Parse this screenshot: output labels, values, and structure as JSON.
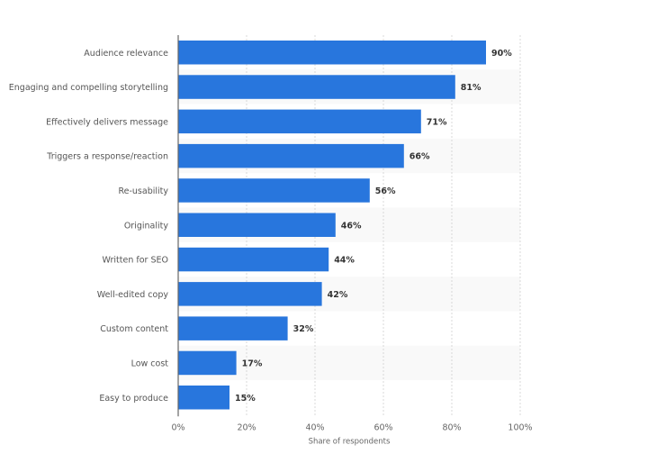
{
  "chart_data": {
    "type": "bar",
    "orientation": "horizontal",
    "title": "",
    "xlabel": "Share of respondents",
    "ylabel": "",
    "xlim": [
      0,
      100
    ],
    "x_ticks": [
      "0%",
      "20%",
      "40%",
      "60%",
      "80%",
      "100%"
    ],
    "tick_values": [
      0,
      20,
      40,
      60,
      80,
      100
    ],
    "grid": true,
    "legend": "none",
    "value_suffix": "%",
    "categories": [
      "Audience relevance",
      "Engaging and compelling storytelling",
      "Effectively delivers message",
      "Triggers a response/reaction",
      "Re-usability",
      "Originality",
      "Written for SEO",
      "Well-edited copy",
      "Custom content",
      "Low cost",
      "Easy to produce"
    ],
    "values": [
      90,
      81,
      71,
      66,
      56,
      46,
      44,
      42,
      32,
      17,
      15
    ],
    "value_labels": [
      "90%",
      "81%",
      "71%",
      "66%",
      "56%",
      "46%",
      "44%",
      "42%",
      "32%",
      "17%",
      "15%"
    ],
    "colors": {
      "bar": "#2876dd",
      "band": "#f9f9f9",
      "grid": "#d8d8d8",
      "axis": "#666666"
    }
  }
}
